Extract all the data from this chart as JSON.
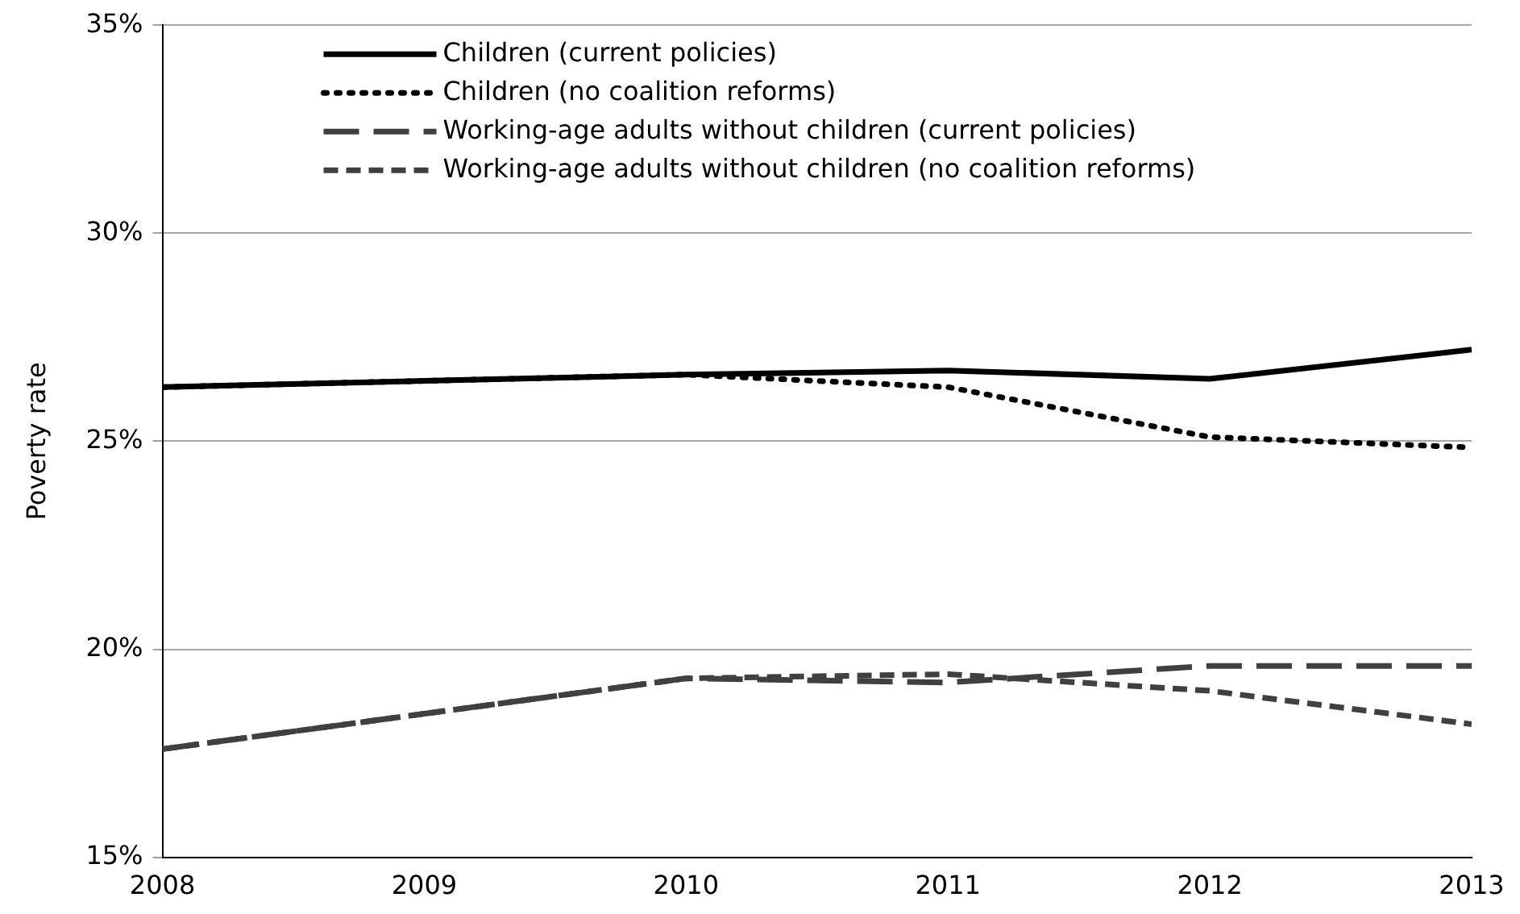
{
  "chart_data": {
    "type": "line",
    "ylabel": "Poverty rate",
    "x": [
      2008,
      2009,
      2010,
      2011,
      2012,
      2013
    ],
    "series": [
      {
        "name": "Children (current policies)",
        "color": "#000000",
        "line_style": "solid",
        "values": [
          26.3,
          26.45,
          26.6,
          26.7,
          26.5,
          27.2
        ]
      },
      {
        "name": "Children (no coalition reforms)",
        "color": "#000000",
        "line_style": "dotted",
        "values": [
          26.3,
          26.45,
          26.6,
          26.3,
          25.1,
          24.85
        ]
      },
      {
        "name": "Working-age adults without children (current policies)",
        "color": "#404040",
        "line_style": "longdash",
        "values": [
          17.6,
          18.45,
          19.3,
          19.2,
          19.6,
          19.6
        ]
      },
      {
        "name": "Working-age adults without children (no coalition reforms)",
        "color": "#404040",
        "line_style": "dashed",
        "values": [
          17.6,
          18.45,
          19.3,
          19.4,
          19.0,
          18.2
        ]
      }
    ],
    "xlim": [
      2008,
      2013
    ],
    "xticks": [
      2008,
      2009,
      2010,
      2011,
      2012,
      2013
    ],
    "ylim": [
      15,
      35
    ],
    "yticks": [
      {
        "value": 15,
        "label": "15%"
      },
      {
        "value": 20,
        "label": "20%"
      },
      {
        "value": 25,
        "label": "25%"
      },
      {
        "value": 30,
        "label": "30%"
      },
      {
        "value": 35,
        "label": "35%"
      }
    ],
    "grid": "y",
    "legend": "top",
    "marker": "none"
  }
}
